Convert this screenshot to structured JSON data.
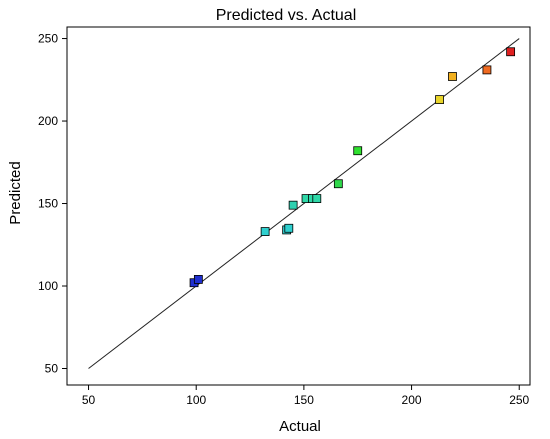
{
  "chart_data": {
    "type": "scatter",
    "title": "Predicted vs. Actual",
    "xlabel": "Actual",
    "ylabel": "Predicted",
    "xlim": [
      40,
      255
    ],
    "ylim": [
      40,
      257
    ],
    "xticks": [
      50,
      100,
      150,
      200,
      250
    ],
    "yticks": [
      50,
      100,
      150,
      200,
      250
    ],
    "grid": false,
    "legend": "none",
    "reference_line": {
      "from": [
        50,
        50
      ],
      "to": [
        250,
        250
      ]
    },
    "points": [
      {
        "x": 99,
        "y": 102,
        "color": "#1f2fd0"
      },
      {
        "x": 101,
        "y": 104,
        "color": "#1f2fd0"
      },
      {
        "x": 132,
        "y": 133,
        "color": "#2fd0cf"
      },
      {
        "x": 142,
        "y": 134,
        "color": "#2fd0cf"
      },
      {
        "x": 143,
        "y": 135,
        "color": "#2fd0cf"
      },
      {
        "x": 145,
        "y": 149,
        "color": "#2fd0b0"
      },
      {
        "x": 151,
        "y": 153,
        "color": "#2fd8a8"
      },
      {
        "x": 154,
        "y": 153,
        "color": "#2fd8a8"
      },
      {
        "x": 156,
        "y": 153,
        "color": "#2fd8a8"
      },
      {
        "x": 166,
        "y": 162,
        "color": "#2fd84a"
      },
      {
        "x": 175,
        "y": 182,
        "color": "#2fe02f"
      },
      {
        "x": 213,
        "y": 213,
        "color": "#e8d42a"
      },
      {
        "x": 219,
        "y": 227,
        "color": "#f2b01e"
      },
      {
        "x": 235,
        "y": 231,
        "color": "#f06a20"
      },
      {
        "x": 246,
        "y": 242,
        "color": "#e02020"
      }
    ]
  }
}
